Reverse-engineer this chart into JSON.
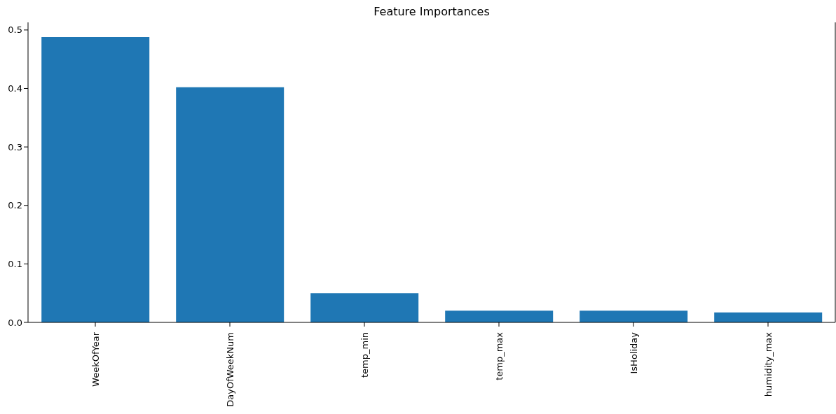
{
  "chart_data": {
    "type": "bar",
    "title": "Feature Importances",
    "categories": [
      "WeekOfYear",
      "DayOfWeekNum",
      "temp_min",
      "temp_max",
      "IsHoliday",
      "humidity_max"
    ],
    "values": [
      0.488,
      0.402,
      0.05,
      0.02,
      0.02,
      0.017
    ],
    "color": "#1f77b4",
    "ylim": [
      0,
      0.513
    ],
    "yticks": [
      {
        "value": 0,
        "label": "0.0"
      },
      {
        "value": 0.1,
        "label": "0.1"
      },
      {
        "value": 0.2,
        "label": "0.2"
      },
      {
        "value": 0.3,
        "label": "0.3"
      },
      {
        "value": 0.4,
        "label": "0.4"
      },
      {
        "value": 0.5,
        "label": "0.5"
      }
    ]
  }
}
